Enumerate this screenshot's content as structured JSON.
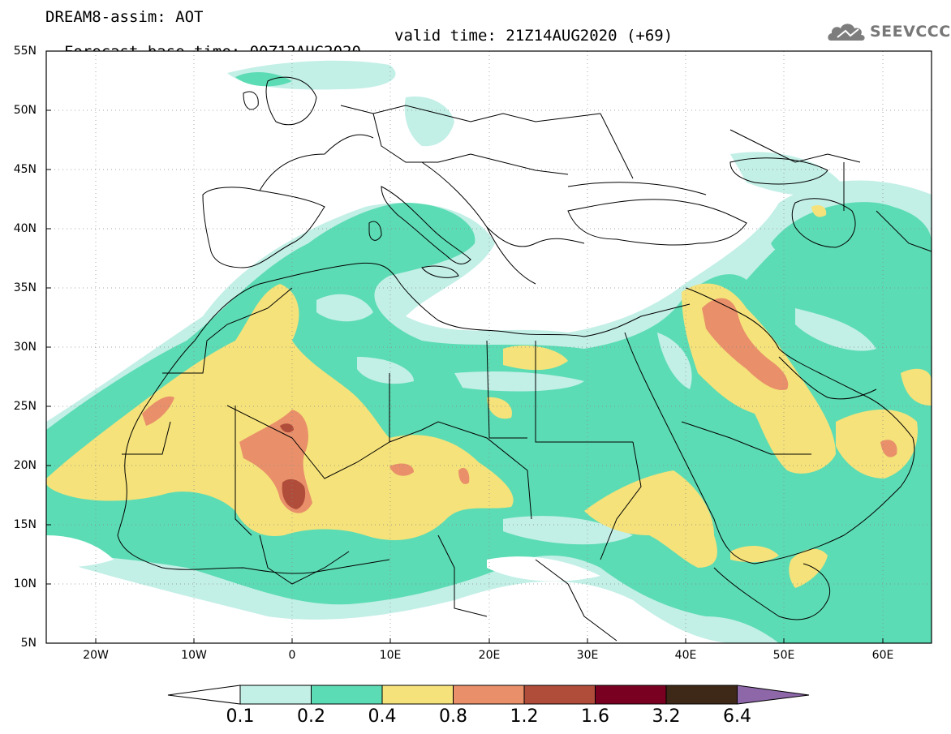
{
  "title": {
    "line1": "DREAM8-assim: AOT",
    "base_time": "Forecast base time: 00Z12AUG2020",
    "valid_time": "valid time: 21Z14AUG2020 (+69)"
  },
  "logo": {
    "text": "SEEVCCC"
  },
  "map": {
    "projection": "lat-lon",
    "lon_range": [
      -25,
      65
    ],
    "lat_range": [
      5,
      55
    ],
    "lat_labels": [
      "55N",
      "50N",
      "45N",
      "40N",
      "35N",
      "30N",
      "25N",
      "20N",
      "15N",
      "10N",
      "5N"
    ],
    "lon_labels": [
      "20W",
      "10W",
      "0",
      "10E",
      "20E",
      "30E",
      "40E",
      "50E",
      "60E"
    ],
    "field": "Aerosol Optical Thickness"
  },
  "colorbar": {
    "labels": [
      "0.1",
      "0.2",
      "0.4",
      "0.8",
      "1.2",
      "1.6",
      "3.2",
      "6.4"
    ],
    "colors": [
      "#ffffff",
      "#c2efe6",
      "#5cdcb4",
      "#f5e27a",
      "#e9906a",
      "#b04c3a",
      "#7a0021",
      "#3e2818",
      "#8d67a8"
    ]
  },
  "colors": {
    "ocean": "#ffffff",
    "level_0_1": "#c2efe6",
    "level_0_2": "#5cdcb4",
    "level_0_4": "#f5e27a",
    "level_0_8": "#e9906a",
    "level_1_2": "#b04c3a",
    "borders": "#000000"
  }
}
